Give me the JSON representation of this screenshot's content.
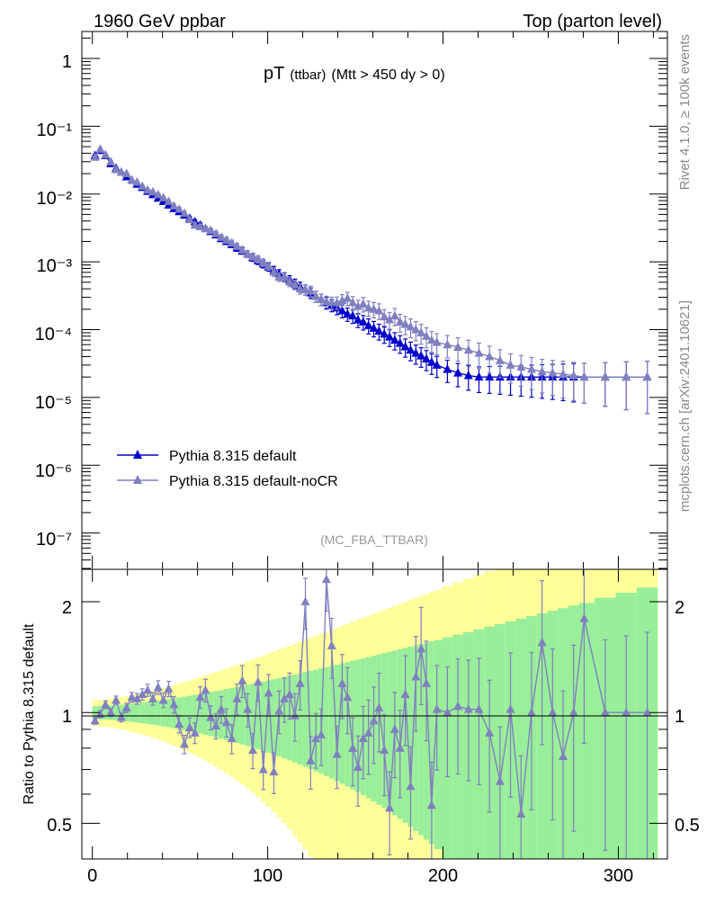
{
  "header": {
    "left": "1960 GeV ppbar",
    "right": "Top (parton level)"
  },
  "side_labels": {
    "rivet": "Rivet 4.1.0, ≥ 100k events",
    "mcplots": "mcplots.cern.ch [arXiv:2401.10621]"
  },
  "chart_data": {
    "type": "line",
    "title_main": "pT",
    "title_small": "(ttbar)",
    "title_rest": "(Mtt > 450 dy > 0)",
    "analysis_label": "(MC_FBA_TTBAR)",
    "ylabel_ratio": "Ratio to Pythia 8.315 default",
    "yscale": "log",
    "ylim": [
      3e-08,
      2.5
    ],
    "xlim": [
      -6,
      328
    ],
    "ratio_ylim": [
      0.4,
      2.45
    ],
    "x_ticks": [
      0,
      100,
      200,
      300
    ],
    "y_tick_labels": [
      "1",
      "10⁻¹",
      "10⁻²",
      "10⁻³",
      "10⁻⁴",
      "10⁻⁵",
      "10⁻⁶",
      "10⁻⁷"
    ],
    "ratio_tick_labels": [
      "0.5",
      "1",
      "2"
    ],
    "legend_position": "lower-left",
    "colors": {
      "default": "#0000cc",
      "noCR": "#8080c0",
      "band_1sigma": "#99ee99",
      "band_2sigma": "#ffff99"
    },
    "x": [
      1.5,
      4.5,
      7.5,
      10.5,
      13.5,
      16.5,
      19.5,
      22.5,
      25.5,
      28.5,
      31.5,
      34.5,
      37.5,
      40.5,
      43.5,
      46.5,
      49.5,
      52.5,
      55.5,
      58.5,
      61.5,
      64.5,
      67.5,
      70.5,
      73.5,
      76.5,
      79.5,
      82.5,
      85.5,
      88.5,
      91.5,
      94.5,
      97.5,
      100.5,
      103.5,
      106.5,
      109.5,
      112.5,
      115.5,
      118.5,
      121.5,
      124.5,
      127.5,
      130.5,
      133.5,
      136.5,
      139.5,
      142.5,
      145.5,
      148.5,
      151.5,
      154.5,
      157.5,
      160.5,
      163.5,
      166.5,
      169.5,
      172.5,
      175.5,
      178.5,
      181.5,
      184.5,
      187.5,
      190.5,
      193.5,
      196.5,
      202.5,
      208.5,
      214.5,
      220.5,
      226.5,
      232.5,
      238.5,
      244.5,
      250.5,
      256.5,
      262.5,
      268.5,
      274.5,
      280.5,
      292.5,
      304.5,
      316.5
    ],
    "series": [
      {
        "name": "Pythia 8.315 default",
        "values": [
          0.037,
          0.044,
          0.037,
          0.028,
          0.024,
          0.021,
          0.018,
          0.016,
          0.014,
          0.0125,
          0.011,
          0.0098,
          0.0087,
          0.0078,
          0.0069,
          0.0061,
          0.0055,
          0.0049,
          0.0044,
          0.0039,
          0.0035,
          0.0031,
          0.0028,
          0.0025,
          0.0022,
          0.002,
          0.0018,
          0.0016,
          0.00145,
          0.0013,
          0.00115,
          0.00104,
          0.00093,
          0.00084,
          0.00075,
          0.00067,
          0.0006,
          0.00054,
          0.00048,
          0.00043,
          0.00039,
          0.00035,
          0.00031,
          0.00028,
          0.00025,
          0.00023,
          0.00021,
          0.00019,
          0.00017,
          0.00016,
          0.00014,
          0.00013,
          0.000115,
          0.000105,
          9.5e-05,
          8.6e-05,
          7.8e-05,
          7e-05,
          6.3e-05,
          5.6e-05,
          5e-05,
          4.5e-05,
          4.1e-05,
          3.7e-05,
          3.3e-05,
          3e-05,
          2.6e-05,
          2.3e-05,
          2.1e-05,
          2e-05,
          2e-05,
          2e-05,
          2e-05,
          2e-05,
          2e-05,
          2e-05,
          2e-05,
          2e-05,
          2e-05,
          2e-05,
          2e-05,
          2e-05,
          2e-05
        ]
      },
      {
        "name": "Pythia 8.315 default-noCR",
        "values": [
          0.035,
          0.046,
          0.038,
          0.03,
          0.023,
          0.021,
          0.02,
          0.016,
          0.015,
          0.013,
          0.0115,
          0.0108,
          0.0098,
          0.0088,
          0.0078,
          0.0067,
          0.006,
          0.0052,
          0.0042,
          0.0035,
          0.0033,
          0.0031,
          0.0029,
          0.0026,
          0.0023,
          0.0021,
          0.0019,
          0.0017,
          0.0015,
          0.0013,
          0.0012,
          0.0011,
          0.00098,
          0.00087,
          0.00071,
          0.0006,
          0.00059,
          0.00051,
          0.00046,
          0.0004,
          0.00039,
          0.00037,
          0.00031,
          0.00028,
          0.00026,
          0.00025,
          0.00025,
          0.00027,
          0.00029,
          0.00025,
          0.00022,
          0.00024,
          0.00021,
          0.0002,
          0.00019,
          0.000155,
          0.00014,
          0.00016,
          0.00013,
          0.00012,
          0.00011,
          0.0001,
          9e-05,
          8e-05,
          7e-05,
          6.5e-05,
          6e-05,
          5.5e-05,
          5e-05,
          4.5e-05,
          4e-05,
          3.5e-05,
          3e-05,
          2.8e-05,
          2.6e-05,
          2.4e-05,
          2.3e-05,
          2.2e-05,
          2.1e-05,
          2e-05,
          2e-05,
          2e-05,
          2e-05
        ]
      }
    ],
    "ratio": {
      "reference": "Pythia 8.315 default",
      "values": [
        0.95,
        0.99,
        1.05,
        1.0,
        1.08,
        0.97,
        1.03,
        1.1,
        1.09,
        1.12,
        1.15,
        1.09,
        1.17,
        1.08,
        1.16,
        1.05,
        0.93,
        0.82,
        0.91,
        0.88,
        1.1,
        1.15,
        0.97,
        0.92,
        1.02,
        0.94,
        0.85,
        1.09,
        1.22,
        1.02,
        0.79,
        1.21,
        0.7,
        1.13,
        0.69,
        1.01,
        1.09,
        1.12,
        0.98,
        1.2,
        2.0,
        0.74,
        0.85,
        0.87,
        2.3,
        1.52,
        0.77,
        1.2,
        1.1,
        0.8,
        0.71,
        0.85,
        0.88,
        0.95,
        1.03,
        0.79,
        0.55,
        0.9,
        0.8,
        1.12,
        0.63,
        1.25,
        1.49,
        1.2,
        0.56,
        1.02,
        1.0,
        1.04,
        1.02,
        1.02,
        0.88,
        0.65,
        1.02,
        0.53,
        1.0,
        1.55,
        1.0,
        0.76,
        1.0,
        1.8,
        1.0,
        1.0,
        1.0
      ]
    }
  },
  "legend": {
    "items": [
      {
        "label": "Pythia 8.315 default"
      },
      {
        "label": "Pythia 8.315 default-noCR"
      }
    ]
  }
}
